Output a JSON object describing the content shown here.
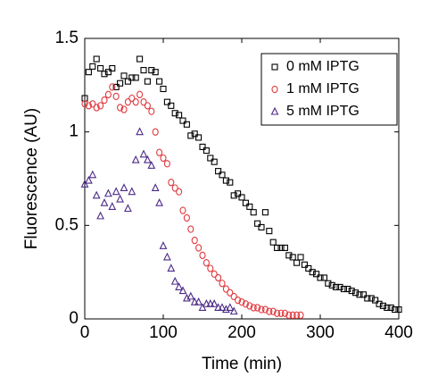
{
  "chart_data": {
    "type": "scatter",
    "xlabel": "Time (min)",
    "ylabel": "Fluorescence (AU)",
    "xlim": [
      0,
      400
    ],
    "ylim": [
      0,
      1.5
    ],
    "xticks": [
      0,
      100,
      200,
      300,
      400
    ],
    "yticks": [
      0,
      0.5,
      1,
      1.5
    ],
    "grid": false,
    "legend": "upper right",
    "series": [
      {
        "name": "0 mM IPTG",
        "color": "#000000",
        "marker": "square",
        "x": [
          0,
          5,
          10,
          15,
          20,
          25,
          30,
          35,
          40,
          45,
          50,
          55,
          60,
          65,
          70,
          75,
          80,
          85,
          90,
          95,
          100,
          105,
          110,
          115,
          120,
          125,
          130,
          135,
          140,
          145,
          150,
          155,
          160,
          165,
          170,
          175,
          180,
          185,
          190,
          195,
          200,
          205,
          210,
          215,
          220,
          225,
          230,
          235,
          240,
          245,
          250,
          255,
          260,
          265,
          270,
          275,
          280,
          285,
          290,
          295,
          300,
          305,
          310,
          315,
          320,
          325,
          330,
          335,
          340,
          345,
          350,
          355,
          360,
          365,
          370,
          375,
          380,
          385,
          390,
          395,
          400
        ],
        "values": [
          1.18,
          1.32,
          1.35,
          1.39,
          1.34,
          1.31,
          1.32,
          1.34,
          1.24,
          1.26,
          1.3,
          1.27,
          1.29,
          1.29,
          1.39,
          1.33,
          1.27,
          1.33,
          1.32,
          1.27,
          1.23,
          1.16,
          1.14,
          1.1,
          1.09,
          1.06,
          1.04,
          0.98,
          0.99,
          0.97,
          0.92,
          0.9,
          0.86,
          0.84,
          0.79,
          0.77,
          0.74,
          0.73,
          0.66,
          0.67,
          0.65,
          0.62,
          0.6,
          0.57,
          0.51,
          0.49,
          0.57,
          0.47,
          0.41,
          0.38,
          0.38,
          0.38,
          0.34,
          0.33,
          0.3,
          0.33,
          0.29,
          0.27,
          0.25,
          0.24,
          0.22,
          0.22,
          0.19,
          0.18,
          0.17,
          0.17,
          0.16,
          0.16,
          0.15,
          0.14,
          0.13,
          0.13,
          0.11,
          0.11,
          0.1,
          0.08,
          0.07,
          0.06,
          0.06,
          0.05,
          0.05
        ]
      },
      {
        "name": "1 mM IPTG",
        "color": "#e0393e",
        "marker": "circle",
        "x": [
          0,
          5,
          10,
          15,
          20,
          25,
          30,
          35,
          40,
          45,
          50,
          55,
          60,
          65,
          70,
          75,
          80,
          85,
          90,
          95,
          100,
          105,
          110,
          115,
          120,
          125,
          130,
          135,
          140,
          145,
          150,
          155,
          160,
          165,
          170,
          175,
          180,
          185,
          190,
          195,
          200,
          205,
          210,
          215,
          220,
          225,
          230,
          235,
          240,
          245,
          250,
          255,
          260,
          265,
          270,
          275
        ],
        "values": [
          1.15,
          1.14,
          1.15,
          1.13,
          1.14,
          1.17,
          1.2,
          1.24,
          1.19,
          1.13,
          1.12,
          1.16,
          1.18,
          1.16,
          1.2,
          1.16,
          1.14,
          1.11,
          1.0,
          0.89,
          0.86,
          0.83,
          0.73,
          0.7,
          0.68,
          0.58,
          0.54,
          0.48,
          0.42,
          0.38,
          0.34,
          0.3,
          0.27,
          0.24,
          0.22,
          0.19,
          0.16,
          0.14,
          0.12,
          0.1,
          0.09,
          0.08,
          0.07,
          0.06,
          0.06,
          0.05,
          0.05,
          0.04,
          0.04,
          0.03,
          0.03,
          0.03,
          0.02,
          0.02,
          0.02,
          0.02
        ]
      },
      {
        "name": "5 mM IPTG",
        "color": "#4b2a87",
        "marker": "triangle",
        "x": [
          0,
          5,
          10,
          15,
          20,
          25,
          30,
          35,
          40,
          45,
          50,
          55,
          60,
          65,
          70,
          75,
          80,
          85,
          90,
          95,
          100,
          105,
          110,
          115,
          120,
          125,
          130,
          135,
          140,
          145,
          150,
          155,
          160,
          165,
          170,
          175,
          180,
          185,
          190
        ],
        "values": [
          0.72,
          0.74,
          0.77,
          0.66,
          0.55,
          0.62,
          0.67,
          0.6,
          0.68,
          0.64,
          0.7,
          0.59,
          0.68,
          0.85,
          1.0,
          0.88,
          0.85,
          0.82,
          0.7,
          0.62,
          0.39,
          0.33,
          0.27,
          0.2,
          0.17,
          0.15,
          0.11,
          0.12,
          0.09,
          0.09,
          0.06,
          0.08,
          0.08,
          0.08,
          0.06,
          0.06,
          0.05,
          0.06,
          0.04
        ]
      }
    ]
  }
}
